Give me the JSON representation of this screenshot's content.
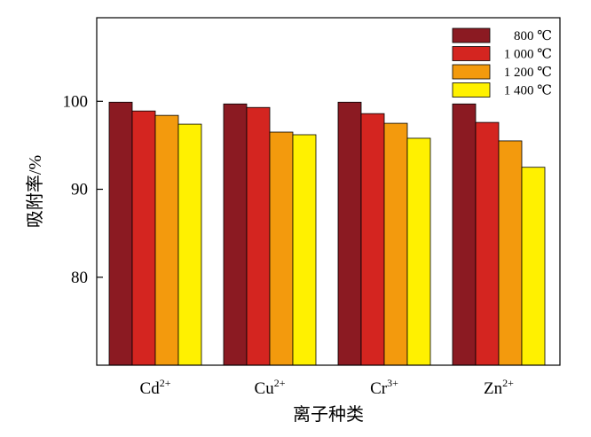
{
  "chart_data": {
    "type": "bar",
    "title": "",
    "xlabel": "离子种类",
    "ylabel": "吸附率/%",
    "ylim": [
      70,
      109.5
    ],
    "yticks": [
      80,
      90,
      100
    ],
    "grid": false,
    "legend_position": "top-right",
    "categories": [
      {
        "base": "Cd",
        "sup": "2+"
      },
      {
        "base": "Cu",
        "sup": "2+"
      },
      {
        "base": "Cr",
        "sup": "3+"
      },
      {
        "base": "Zn",
        "sup": "2+"
      }
    ],
    "series": [
      {
        "name": "800 ℃",
        "color": "#8B1A22",
        "values": [
          99.9,
          99.7,
          99.9,
          99.7
        ]
      },
      {
        "name": "1 000 ℃",
        "color": "#D42520",
        "values": [
          98.9,
          99.3,
          98.6,
          97.6
        ]
      },
      {
        "name": "1 200 ℃",
        "color": "#F39A0D",
        "values": [
          98.4,
          96.5,
          97.5,
          95.5
        ]
      },
      {
        "name": "1 400 ℃",
        "color": "#FFF100",
        "values": [
          97.4,
          96.2,
          95.8,
          92.5
        ]
      }
    ]
  }
}
